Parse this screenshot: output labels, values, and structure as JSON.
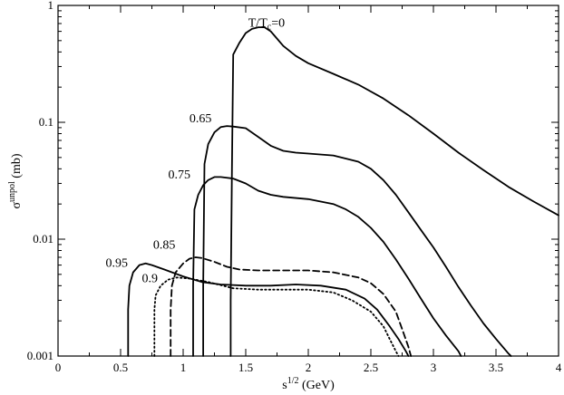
{
  "chart_data": {
    "type": "line",
    "title": "",
    "xlabel": {
      "base": "s",
      "sup": "1/2",
      "unit": " (GeV)"
    },
    "ylabel": {
      "base": "σ",
      "sup": "unpol",
      "unit": " (mb)"
    },
    "xlim": [
      0,
      4
    ],
    "ylim": [
      0.001,
      1
    ],
    "yscale": "log",
    "grid": false,
    "legend": "none",
    "x_ticks": [
      {
        "value": 0,
        "label": "0"
      },
      {
        "value": 0.5,
        "label": "0.5"
      },
      {
        "value": 1,
        "label": "1"
      },
      {
        "value": 1.5,
        "label": "1.5"
      },
      {
        "value": 2,
        "label": "2"
      },
      {
        "value": 2.5,
        "label": "2.5"
      },
      {
        "value": 3,
        "label": "3"
      },
      {
        "value": 3.5,
        "label": "3.5"
      },
      {
        "value": 4,
        "label": "4"
      }
    ],
    "y_ticks": [
      {
        "value": 0.001,
        "label": "0.001"
      },
      {
        "value": 0.01,
        "label": "0.01"
      },
      {
        "value": 0.1,
        "label": "0.1"
      },
      {
        "value": 1,
        "label": "1"
      }
    ],
    "series": [
      {
        "id": "t0",
        "style": "solid",
        "points": [
          [
            1.38,
            0.001
          ],
          [
            1.38,
            0.003
          ],
          [
            1.39,
            0.04
          ],
          [
            1.4,
            0.38
          ],
          [
            1.45,
            0.48
          ],
          [
            1.5,
            0.58
          ],
          [
            1.55,
            0.63
          ],
          [
            1.6,
            0.65
          ],
          [
            1.65,
            0.65
          ],
          [
            1.7,
            0.6
          ],
          [
            1.75,
            0.52
          ],
          [
            1.8,
            0.45
          ],
          [
            1.9,
            0.37
          ],
          [
            2.0,
            0.32
          ],
          [
            2.2,
            0.26
          ],
          [
            2.4,
            0.21
          ],
          [
            2.6,
            0.16
          ],
          [
            2.8,
            0.115
          ],
          [
            3.0,
            0.08
          ],
          [
            3.2,
            0.055
          ],
          [
            3.4,
            0.039
          ],
          [
            3.6,
            0.028
          ],
          [
            3.8,
            0.021
          ],
          [
            4.0,
            0.016
          ]
        ]
      },
      {
        "id": "t065",
        "style": "solid",
        "points": [
          [
            1.16,
            0.001
          ],
          [
            1.16,
            0.004
          ],
          [
            1.17,
            0.044
          ],
          [
            1.2,
            0.065
          ],
          [
            1.25,
            0.082
          ],
          [
            1.3,
            0.091
          ],
          [
            1.35,
            0.093
          ],
          [
            1.4,
            0.092
          ],
          [
            1.5,
            0.089
          ],
          [
            1.6,
            0.075
          ],
          [
            1.7,
            0.063
          ],
          [
            1.8,
            0.057
          ],
          [
            1.9,
            0.055
          ],
          [
            2.0,
            0.054
          ],
          [
            2.2,
            0.052
          ],
          [
            2.4,
            0.046
          ],
          [
            2.5,
            0.04
          ],
          [
            2.6,
            0.032
          ],
          [
            2.7,
            0.024
          ],
          [
            2.8,
            0.017
          ],
          [
            2.9,
            0.012
          ],
          [
            3.0,
            0.0085
          ],
          [
            3.1,
            0.0058
          ],
          [
            3.2,
            0.0039
          ],
          [
            3.3,
            0.0027
          ],
          [
            3.4,
            0.0019
          ],
          [
            3.5,
            0.0014
          ],
          [
            3.6,
            0.00105
          ],
          [
            3.62,
            0.001
          ]
        ]
      },
      {
        "id": "t075",
        "style": "solid",
        "points": [
          [
            1.08,
            0.001
          ],
          [
            1.08,
            0.004
          ],
          [
            1.09,
            0.018
          ],
          [
            1.12,
            0.024
          ],
          [
            1.16,
            0.029
          ],
          [
            1.2,
            0.032
          ],
          [
            1.25,
            0.034
          ],
          [
            1.3,
            0.034
          ],
          [
            1.4,
            0.033
          ],
          [
            1.5,
            0.03
          ],
          [
            1.6,
            0.026
          ],
          [
            1.7,
            0.024
          ],
          [
            1.8,
            0.023
          ],
          [
            2.0,
            0.022
          ],
          [
            2.2,
            0.02
          ],
          [
            2.3,
            0.018
          ],
          [
            2.4,
            0.0155
          ],
          [
            2.5,
            0.0125
          ],
          [
            2.6,
            0.0095
          ],
          [
            2.7,
            0.0067
          ],
          [
            2.8,
            0.0046
          ],
          [
            2.9,
            0.0031
          ],
          [
            3.0,
            0.0021
          ],
          [
            3.1,
            0.0015
          ],
          [
            3.2,
            0.0011
          ],
          [
            3.22,
            0.001
          ]
        ]
      },
      {
        "id": "t085",
        "style": "dashed",
        "points": [
          [
            0.9,
            0.001
          ],
          [
            0.9,
            0.0025
          ],
          [
            0.91,
            0.004
          ],
          [
            0.94,
            0.0052
          ],
          [
            1.0,
            0.0062
          ],
          [
            1.05,
            0.0068
          ],
          [
            1.1,
            0.007
          ],
          [
            1.15,
            0.0069
          ],
          [
            1.25,
            0.0064
          ],
          [
            1.35,
            0.0058
          ],
          [
            1.45,
            0.0055
          ],
          [
            1.6,
            0.0054
          ],
          [
            1.8,
            0.0054
          ],
          [
            2.0,
            0.0054
          ],
          [
            2.2,
            0.0052
          ],
          [
            2.4,
            0.0047
          ],
          [
            2.5,
            0.0042
          ],
          [
            2.6,
            0.0034
          ],
          [
            2.7,
            0.0024
          ],
          [
            2.75,
            0.0017
          ],
          [
            2.8,
            0.0012
          ],
          [
            2.82,
            0.001
          ]
        ]
      },
      {
        "id": "t09",
        "style": "dotted",
        "points": [
          [
            0.77,
            0.001
          ],
          [
            0.77,
            0.0025
          ],
          [
            0.78,
            0.0033
          ],
          [
            0.82,
            0.004
          ],
          [
            0.88,
            0.0045
          ],
          [
            0.95,
            0.0047
          ],
          [
            1.05,
            0.0046
          ],
          [
            1.2,
            0.0043
          ],
          [
            1.4,
            0.0038
          ],
          [
            1.6,
            0.0037
          ],
          [
            1.8,
            0.0037
          ],
          [
            2.0,
            0.0037
          ],
          [
            2.2,
            0.0035
          ],
          [
            2.35,
            0.003
          ],
          [
            2.5,
            0.0024
          ],
          [
            2.6,
            0.0018
          ],
          [
            2.65,
            0.0014
          ],
          [
            2.7,
            0.0011
          ],
          [
            2.72,
            0.001
          ]
        ]
      },
      {
        "id": "t095",
        "style": "solid",
        "points": [
          [
            0.56,
            0.001
          ],
          [
            0.56,
            0.0025
          ],
          [
            0.57,
            0.004
          ],
          [
            0.6,
            0.0052
          ],
          [
            0.65,
            0.006
          ],
          [
            0.7,
            0.0062
          ],
          [
            0.75,
            0.006
          ],
          [
            0.85,
            0.0055
          ],
          [
            1.0,
            0.0048
          ],
          [
            1.15,
            0.0043
          ],
          [
            1.3,
            0.0041
          ],
          [
            1.5,
            0.004
          ],
          [
            1.7,
            0.004
          ],
          [
            1.9,
            0.0041
          ],
          [
            2.1,
            0.004
          ],
          [
            2.3,
            0.0037
          ],
          [
            2.45,
            0.0031
          ],
          [
            2.55,
            0.0025
          ],
          [
            2.65,
            0.0018
          ],
          [
            2.72,
            0.0014
          ],
          [
            2.78,
            0.0011
          ],
          [
            2.8,
            0.001
          ]
        ]
      }
    ],
    "annotations": [
      {
        "id": "ann-t0",
        "base": "T/T",
        "sub": "c",
        "rest": "=0",
        "x": 1.52,
        "y": 0.66
      },
      {
        "id": "ann-065",
        "text": "0.65",
        "x": 1.05,
        "y": 0.1
      },
      {
        "id": "ann-075",
        "text": "0.75",
        "x": 0.88,
        "y": 0.033
      },
      {
        "id": "ann-085",
        "text": "0.85",
        "x": 0.76,
        "y": 0.0083
      },
      {
        "id": "ann-095",
        "text": "0.95",
        "x": 0.38,
        "y": 0.0058
      },
      {
        "id": "ann-09",
        "text": "0.9",
        "x": 0.67,
        "y": 0.0043
      }
    ]
  }
}
